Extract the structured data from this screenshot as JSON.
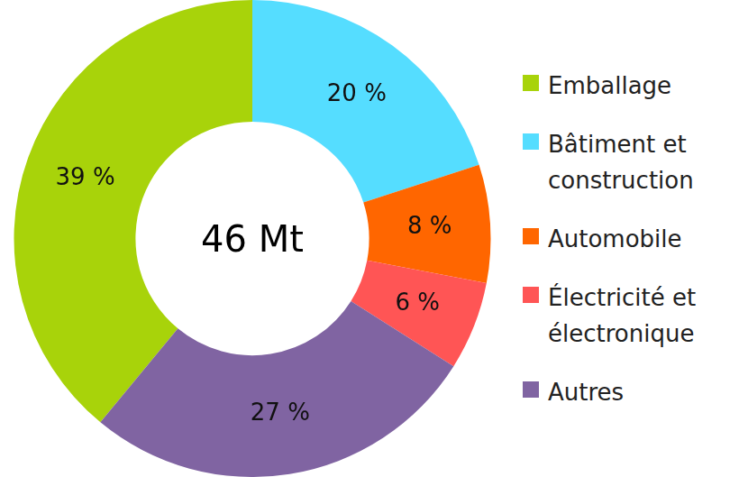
{
  "chart_data": {
    "type": "doughnut",
    "annotation": "46 Mt",
    "categories": [
      "Emballage",
      "Bâtiment et construction",
      "Automobile",
      "Électricité et électronique",
      "Autres"
    ],
    "values": [
      39,
      20,
      8,
      6,
      27
    ],
    "value_labels": [
      "39 %",
      "20 %",
      "8 %",
      "6 %",
      "27 %"
    ],
    "colors": [
      "#a8d30a",
      "#55ddff",
      "#ff6600",
      "#ff5555",
      "#8064a2"
    ],
    "legend": "right",
    "data_labels": true
  }
}
